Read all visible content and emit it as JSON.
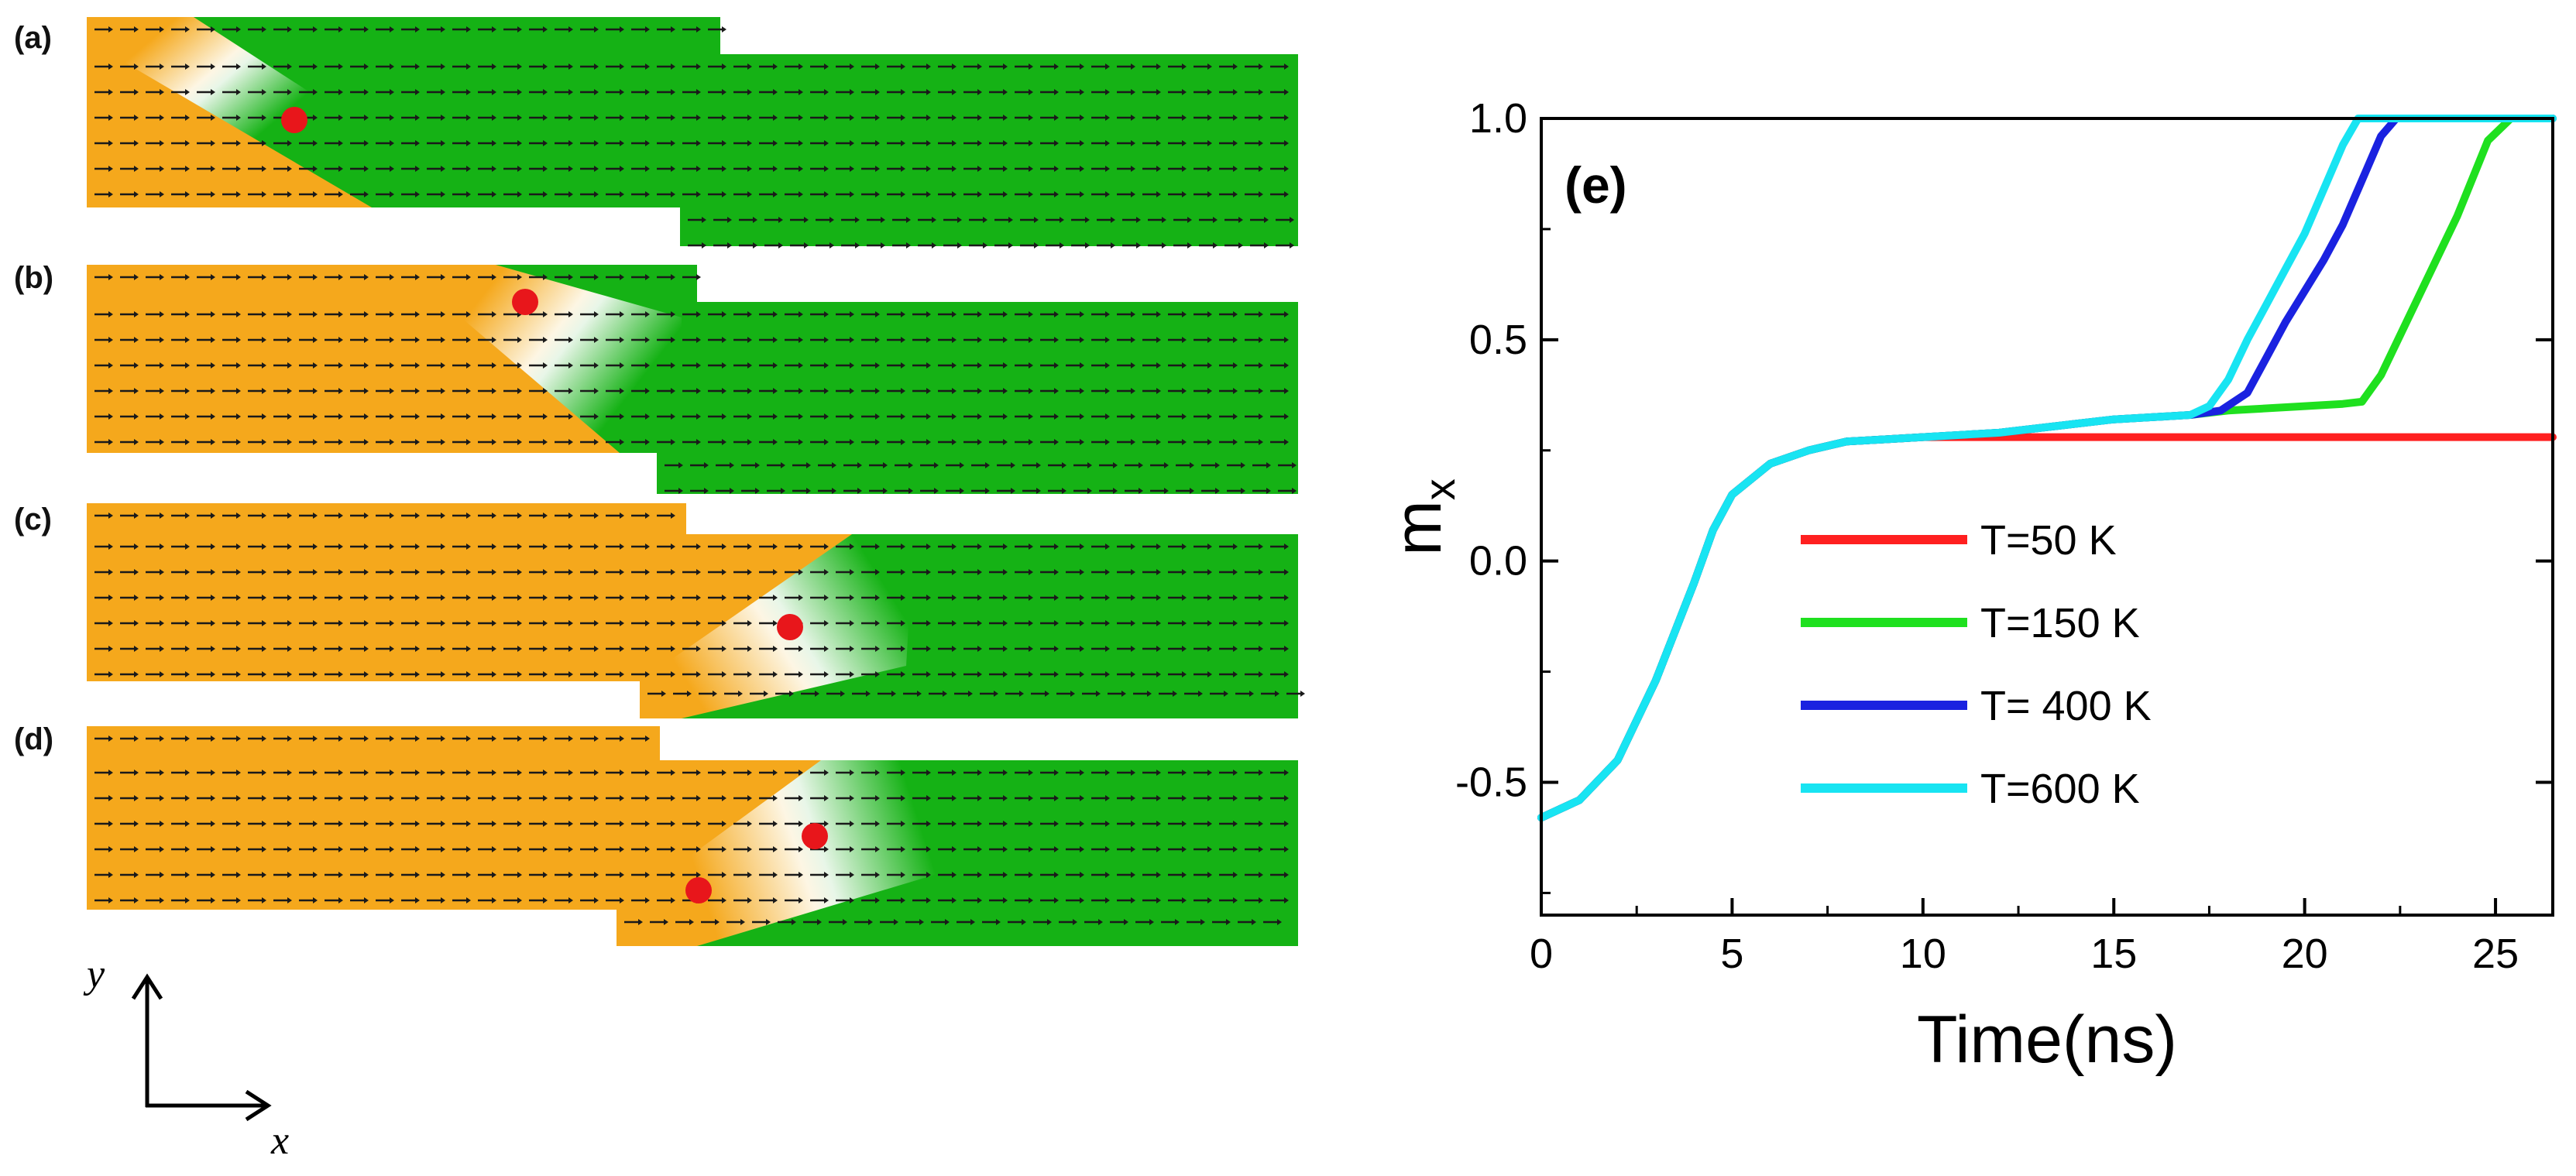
{
  "panels": [
    {
      "label": "(a)",
      "skyrmions": 1
    },
    {
      "label": "(b)",
      "skyrmions": 1
    },
    {
      "label": "(c)",
      "skyrmions": 1
    },
    {
      "label": "(d)",
      "skyrmions": 2
    }
  ],
  "colors": {
    "orange": "#f5a81c",
    "green": "#15b215",
    "arrow": "#1a1a1a",
    "marker": "#e8161b"
  },
  "axes_indicator": {
    "y_label": "y",
    "x_label": "x"
  },
  "chart_data": {
    "type": "line",
    "panel_label": "(e)",
    "xlabel": "Time(ns)",
    "ylabel": "m",
    "ylabel_subscript": "x",
    "xlim": [
      0,
      26.5
    ],
    "ylim": [
      -0.8,
      1.0
    ],
    "x_ticks": [
      0,
      5,
      10,
      15,
      20,
      25
    ],
    "y_ticks": [
      -0.5,
      0.0,
      0.5,
      1.0
    ],
    "x_tick_labels": [
      "0",
      "5",
      "10",
      "15",
      "20",
      "25"
    ],
    "y_tick_labels": [
      "-0.5",
      "0.0",
      "0.5",
      "1.0"
    ],
    "legend_location": "center",
    "series": [
      {
        "name": "T=50 K",
        "color": "#ff2020",
        "x": [
          0,
          1,
          2,
          3,
          4,
          4.5,
          5,
          6,
          7,
          8,
          9,
          10,
          12,
          15,
          18,
          20,
          22,
          24,
          26.5
        ],
        "y": [
          -0.58,
          -0.54,
          -0.45,
          -0.27,
          -0.05,
          0.07,
          0.15,
          0.22,
          0.25,
          0.27,
          0.275,
          0.28,
          0.28,
          0.28,
          0.28,
          0.28,
          0.28,
          0.28,
          0.28
        ]
      },
      {
        "name": "T=150 K",
        "color": "#1fe01f",
        "x": [
          0,
          1,
          2,
          3,
          4,
          4.5,
          5,
          6,
          7,
          8,
          9,
          10,
          12,
          14,
          15,
          16,
          17,
          18,
          20,
          21,
          21.5,
          22,
          23,
          24,
          24.8,
          25.4,
          26.5
        ],
        "y": [
          -0.58,
          -0.54,
          -0.45,
          -0.27,
          -0.05,
          0.07,
          0.15,
          0.22,
          0.25,
          0.27,
          0.275,
          0.28,
          0.29,
          0.31,
          0.32,
          0.325,
          0.33,
          0.34,
          0.35,
          0.355,
          0.36,
          0.42,
          0.6,
          0.78,
          0.95,
          1.0,
          1.0
        ]
      },
      {
        "name": "T= 400 K",
        "color": "#1a22e0",
        "x": [
          0,
          1,
          2,
          3,
          4,
          4.5,
          5,
          6,
          7,
          8,
          9,
          10,
          12,
          14,
          15,
          16,
          17,
          17.8,
          18.5,
          19,
          19.5,
          20,
          20.5,
          21,
          21.5,
          22,
          22.4,
          26.5
        ],
        "y": [
          -0.58,
          -0.54,
          -0.45,
          -0.27,
          -0.05,
          0.07,
          0.15,
          0.22,
          0.25,
          0.27,
          0.275,
          0.28,
          0.29,
          0.31,
          0.32,
          0.325,
          0.33,
          0.34,
          0.38,
          0.46,
          0.54,
          0.61,
          0.68,
          0.76,
          0.86,
          0.96,
          1.0,
          1.0
        ]
      },
      {
        "name": "T=600 K",
        "color": "#18e4f2",
        "x": [
          0,
          1,
          2,
          3,
          4,
          4.5,
          5,
          6,
          7,
          8,
          9,
          10,
          12,
          14,
          15,
          16,
          17,
          17.5,
          18,
          18.5,
          19,
          19.5,
          20,
          20.5,
          21,
          21.4,
          26.5
        ],
        "y": [
          -0.58,
          -0.54,
          -0.45,
          -0.27,
          -0.05,
          0.07,
          0.15,
          0.22,
          0.25,
          0.27,
          0.275,
          0.28,
          0.29,
          0.31,
          0.32,
          0.325,
          0.33,
          0.35,
          0.41,
          0.5,
          0.58,
          0.66,
          0.74,
          0.84,
          0.94,
          1.0,
          1.0
        ]
      }
    ]
  }
}
